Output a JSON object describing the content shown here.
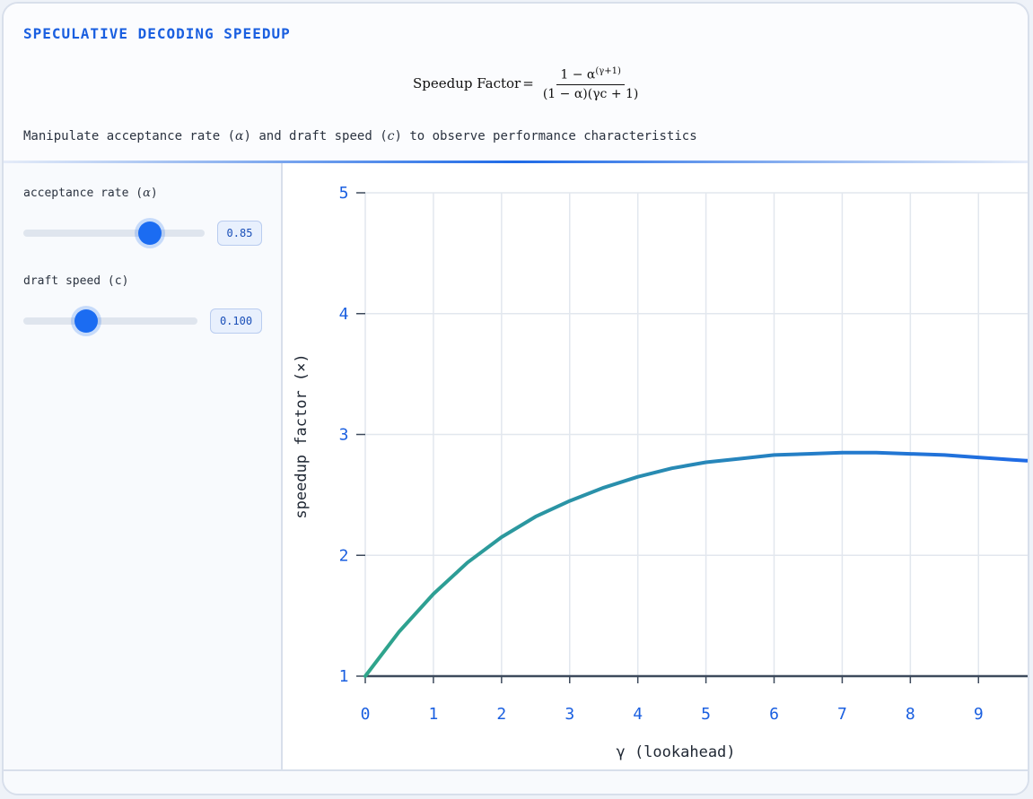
{
  "header": {
    "title": "SPECULATIVE DECODING SPEEDUP",
    "formula": {
      "lhs": "Speedup Factor",
      "numerator_base": "1 − α",
      "numerator_exp": "(γ+1)",
      "denominator": "(1 − α)(γc + 1)"
    },
    "subtitle_parts": [
      "Manipulate acceptance rate (",
      "α",
      ") and draft speed (",
      "c",
      ") to observe performance characteristics"
    ]
  },
  "controls": {
    "acceptance": {
      "label_prefix": "acceptance rate (",
      "symbol": "α",
      "label_suffix": ")",
      "value": "0.85",
      "fraction": 0.85
    },
    "draft": {
      "label": "draft speed (c)",
      "value": "0.100",
      "fraction": 0.36
    }
  },
  "chart_data": {
    "type": "line",
    "xlabel": "γ (lookahead)",
    "ylabel": "speedup factor (×)",
    "xlim": [
      0,
      9.8
    ],
    "ylim": [
      1,
      5
    ],
    "xticks": [
      "0",
      "1",
      "2",
      "3",
      "4",
      "5",
      "6",
      "7",
      "8",
      "9"
    ],
    "yticks": [
      "1",
      "2",
      "3",
      "4",
      "5"
    ],
    "grid": true,
    "params": {
      "alpha": 0.85,
      "c": 0.1
    },
    "series": [
      {
        "x": [
          0,
          0.5,
          1,
          1.5,
          2,
          2.5,
          3,
          3.5,
          4,
          4.5,
          5,
          5.5,
          6,
          6.5,
          7,
          7.5,
          8,
          8.5,
          9,
          9.5,
          9.8
        ],
        "y": [
          1.0,
          1.37,
          1.68,
          1.94,
          2.15,
          2.32,
          2.45,
          2.56,
          2.65,
          2.72,
          2.77,
          2.8,
          2.83,
          2.84,
          2.85,
          2.85,
          2.84,
          2.83,
          2.81,
          2.79,
          2.78
        ]
      }
    ],
    "baseline": 1,
    "colors": {
      "curve_start": "#2fa58a",
      "curve_end": "#1f6ae6",
      "tick": "#1a5fe0",
      "grid": "#e2e7ee",
      "baseline": "#3d4a5c"
    }
  }
}
